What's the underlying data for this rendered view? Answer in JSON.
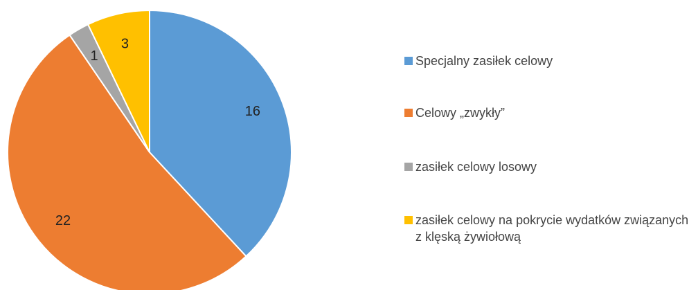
{
  "chart_data": {
    "type": "pie",
    "categories": [
      "Specjalny zasiłek celowy",
      "Celowy „zwykły”",
      "zasiłek celowy losowy",
      "zasiłek celowy na pokrycie wydatków związanych z klęską żywiołową"
    ],
    "values": [
      16,
      22,
      1,
      3
    ],
    "colors": [
      "#5b9bd5",
      "#ed7d31",
      "#a5a5a5",
      "#ffc000"
    ],
    "legend": "right"
  }
}
